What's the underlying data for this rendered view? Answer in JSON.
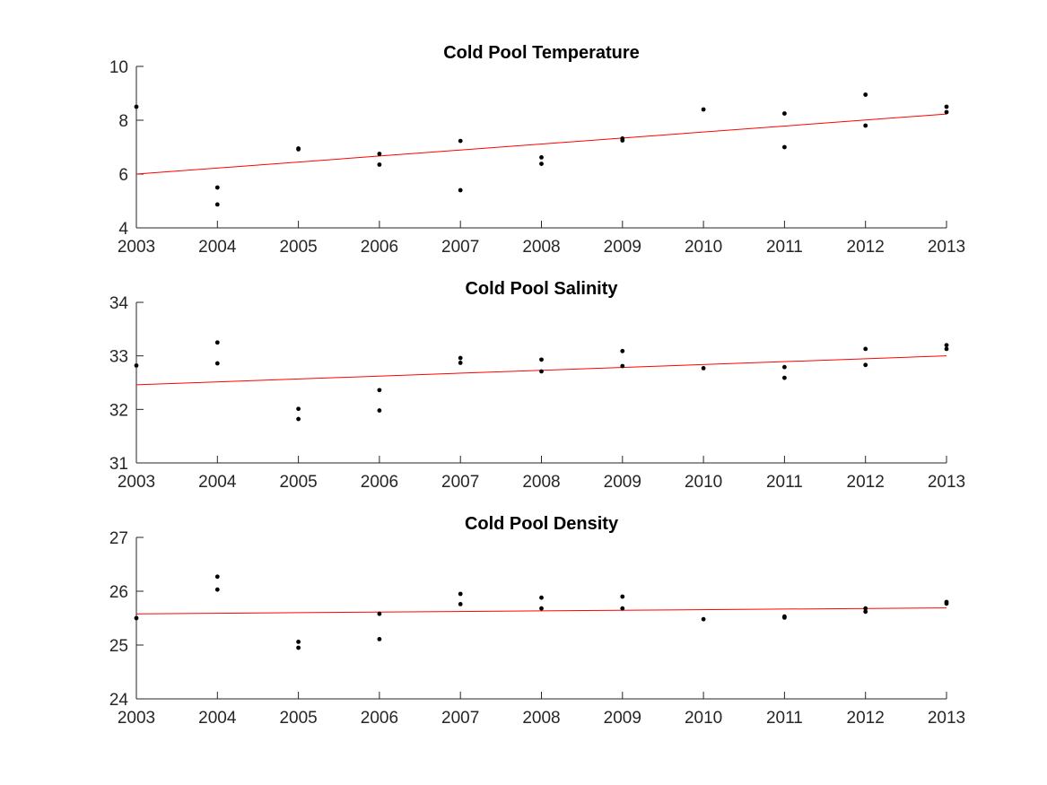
{
  "chart_data": [
    {
      "type": "scatter",
      "title": "Cold Pool Temperature",
      "xlabel": "",
      "ylabel": "",
      "xlim": [
        2003,
        2013
      ],
      "ylim": [
        4,
        10
      ],
      "xticks": [
        "2003",
        "2004",
        "2005",
        "2006",
        "2007",
        "2008",
        "2009",
        "2010",
        "2011",
        "2012",
        "2013"
      ],
      "yticks": [
        "4",
        "6",
        "8",
        "10"
      ],
      "grid": false,
      "points": [
        [
          2003,
          8.5
        ],
        [
          2004,
          5.5
        ],
        [
          2004,
          4.87
        ],
        [
          2005,
          6.95
        ],
        [
          2005,
          6.92
        ],
        [
          2006,
          6.75
        ],
        [
          2006,
          6.35
        ],
        [
          2007,
          7.23
        ],
        [
          2007,
          5.4
        ],
        [
          2008,
          6.62
        ],
        [
          2008,
          6.38
        ],
        [
          2009,
          7.32
        ],
        [
          2009,
          7.25
        ],
        [
          2010,
          8.4
        ],
        [
          2011,
          8.25
        ],
        [
          2011,
          7.0
        ],
        [
          2012,
          8.95
        ],
        [
          2012,
          7.8
        ],
        [
          2013,
          8.5
        ],
        [
          2013,
          8.3
        ]
      ],
      "trend": [
        [
          2003,
          6.0
        ],
        [
          2013,
          8.23
        ]
      ]
    },
    {
      "type": "scatter",
      "title": "Cold Pool Salinity",
      "xlabel": "",
      "ylabel": "",
      "xlim": [
        2003,
        2013
      ],
      "ylim": [
        31,
        34
      ],
      "xticks": [
        "2003",
        "2004",
        "2005",
        "2006",
        "2007",
        "2008",
        "2009",
        "2010",
        "2011",
        "2012",
        "2013"
      ],
      "yticks": [
        "31",
        "32",
        "33",
        "34"
      ],
      "grid": false,
      "points": [
        [
          2003,
          32.82
        ],
        [
          2004,
          33.25
        ],
        [
          2004,
          32.86
        ],
        [
          2005,
          32.01
        ],
        [
          2005,
          31.82
        ],
        [
          2006,
          32.36
        ],
        [
          2006,
          31.98
        ],
        [
          2007,
          32.96
        ],
        [
          2007,
          32.87
        ],
        [
          2008,
          32.93
        ],
        [
          2008,
          32.71
        ],
        [
          2009,
          33.09
        ],
        [
          2009,
          32.81
        ],
        [
          2010,
          32.77
        ],
        [
          2011,
          32.79
        ],
        [
          2011,
          32.59
        ],
        [
          2012,
          33.13
        ],
        [
          2012,
          32.83
        ],
        [
          2013,
          33.2
        ],
        [
          2013,
          33.13
        ]
      ],
      "trend": [
        [
          2003,
          32.46
        ],
        [
          2013,
          33.0
        ]
      ]
    },
    {
      "type": "scatter",
      "title": "Cold Pool Density",
      "xlabel": "",
      "ylabel": "",
      "xlim": [
        2003,
        2013
      ],
      "ylim": [
        24,
        27
      ],
      "xticks": [
        "2003",
        "2004",
        "2005",
        "2006",
        "2007",
        "2008",
        "2009",
        "2010",
        "2011",
        "2012",
        "2013"
      ],
      "yticks": [
        "24",
        "25",
        "26",
        "27"
      ],
      "grid": false,
      "points": [
        [
          2003,
          25.5
        ],
        [
          2004,
          26.27
        ],
        [
          2004,
          26.03
        ],
        [
          2005,
          25.06
        ],
        [
          2005,
          24.95
        ],
        [
          2006,
          25.58
        ],
        [
          2006,
          25.11
        ],
        [
          2007,
          25.95
        ],
        [
          2007,
          25.76
        ],
        [
          2008,
          25.88
        ],
        [
          2008,
          25.68
        ],
        [
          2009,
          25.9
        ],
        [
          2009,
          25.68
        ],
        [
          2010,
          25.48
        ],
        [
          2011,
          25.53
        ],
        [
          2011,
          25.51
        ],
        [
          2012,
          25.68
        ],
        [
          2012,
          25.62
        ],
        [
          2013,
          25.8
        ],
        [
          2013,
          25.77
        ]
      ],
      "trend": [
        [
          2003,
          25.58
        ],
        [
          2013,
          25.69
        ]
      ]
    }
  ],
  "colors": {
    "points": "#000000",
    "trend": "#ff0000",
    "axis": "#262626",
    "background": "#ffffff"
  }
}
